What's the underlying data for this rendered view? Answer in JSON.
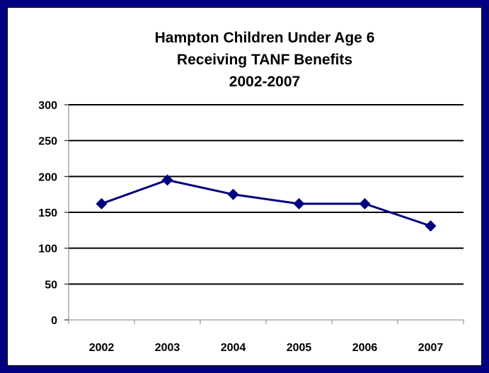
{
  "chart_data": {
    "type": "line",
    "title_lines": [
      "Hampton Children Under Age 6",
      "Receiving TANF Benefits",
      "2002-2007"
    ],
    "categories": [
      "2002",
      "2003",
      "2004",
      "2005",
      "2006",
      "2007"
    ],
    "series": [
      {
        "values": [
          162,
          195,
          175,
          162,
          162,
          131
        ]
      }
    ],
    "xlabel": "",
    "ylabel": "",
    "ylim": [
      0,
      300
    ],
    "yticks": [
      0,
      50,
      100,
      150,
      200,
      250,
      300
    ],
    "grid": true,
    "legend": "none",
    "colors": {
      "series": "#000080",
      "grid": "#000000",
      "border": "#000080"
    },
    "marker": "diamond"
  }
}
